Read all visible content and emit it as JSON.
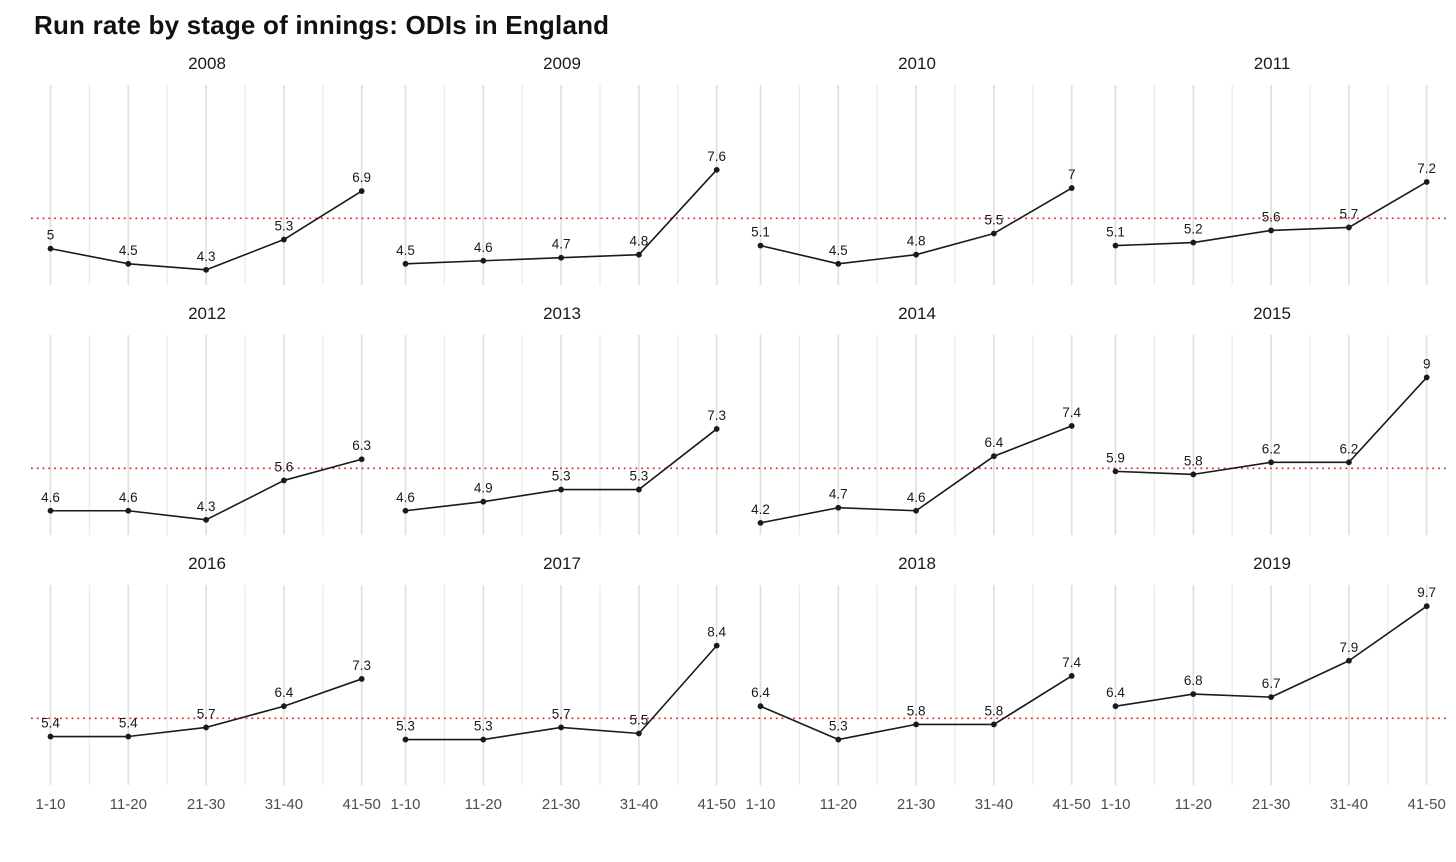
{
  "title": "Run rate by stage of innings: ODIs in England",
  "chart_data": {
    "type": "line",
    "facet_by": "year",
    "categories": [
      "1-10",
      "11-20",
      "21-30",
      "31-40",
      "41-50"
    ],
    "title": "Run rate by stage of innings: ODIs in England",
    "xlabel": "",
    "ylabel": "",
    "ylim": [
      3.8,
      10.4
    ],
    "grid": "vertical-only",
    "legend": "none",
    "reference_line": {
      "value": 6.0,
      "orientation": "horizontal",
      "style": "dotted",
      "color": "#ee2020"
    },
    "series": [
      {
        "year": "2008",
        "values": [
          5,
          4.5,
          4.3,
          5.3,
          6.9
        ],
        "labels": [
          "5",
          "4.5",
          "4.3",
          "5.3",
          "6.9"
        ]
      },
      {
        "year": "2009",
        "values": [
          4.5,
          4.6,
          4.7,
          4.8,
          7.6
        ],
        "labels": [
          "4.5",
          "4.6",
          "4.7",
          "4.8",
          "7.6"
        ]
      },
      {
        "year": "2010",
        "values": [
          5.1,
          4.5,
          4.8,
          5.5,
          7
        ],
        "labels": [
          "5.1",
          "4.5",
          "4.8",
          "5.5",
          "7"
        ]
      },
      {
        "year": "2011",
        "values": [
          5.1,
          5.2,
          5.6,
          5.7,
          7.2
        ],
        "labels": [
          "5.1",
          "5.2",
          "5.6",
          "5.7",
          "7.2"
        ]
      },
      {
        "year": "2012",
        "values": [
          4.6,
          4.6,
          4.3,
          5.6,
          6.3
        ],
        "labels": [
          "4.6",
          "4.6",
          "4.3",
          "5.6",
          "6.3"
        ]
      },
      {
        "year": "2013",
        "values": [
          4.6,
          4.9,
          5.3,
          5.3,
          7.3
        ],
        "labels": [
          "4.6",
          "4.9",
          "5.3",
          "5.3",
          "7.3"
        ]
      },
      {
        "year": "2014",
        "values": [
          4.2,
          4.7,
          4.6,
          6.4,
          7.4
        ],
        "labels": [
          "4.2",
          "4.7",
          "4.6",
          "6.4",
          "7.4"
        ]
      },
      {
        "year": "2015",
        "values": [
          5.9,
          5.8,
          6.2,
          6.2,
          9
        ],
        "labels": [
          "5.9",
          "5.8",
          "6.2",
          "6.2",
          "9"
        ]
      },
      {
        "year": "2016",
        "values": [
          5.4,
          5.4,
          5.7,
          6.4,
          7.3
        ],
        "labels": [
          "5.4",
          "5.4",
          "5.7",
          "6.4",
          "7.3"
        ]
      },
      {
        "year": "2017",
        "values": [
          5.3,
          5.3,
          5.7,
          5.5,
          8.4
        ],
        "labels": [
          "5.3",
          "5.3",
          "5.7",
          "5.5",
          "8.4"
        ]
      },
      {
        "year": "2018",
        "values": [
          6.4,
          5.3,
          5.8,
          5.8,
          7.4
        ],
        "labels": [
          "6.4",
          "5.3",
          "5.8",
          "5.8",
          "7.4"
        ]
      },
      {
        "year": "2019",
        "values": [
          6.4,
          6.8,
          6.7,
          7.9,
          9.7
        ],
        "labels": [
          "6.4",
          "6.8",
          "6.7",
          "7.9",
          "9.7"
        ]
      }
    ]
  },
  "style": {
    "line_color": "#1a1a1a",
    "point_color": "#1a1a1a",
    "label_color": "#1a1a1a",
    "axis_label_color": "#4d4d4d",
    "facet_title_color": "#1a1a1a",
    "grid_major_color": "#e0e0e0",
    "grid_minor_color": "#ebebeb",
    "reference_color": "#ee2020",
    "background": "#ffffff"
  }
}
